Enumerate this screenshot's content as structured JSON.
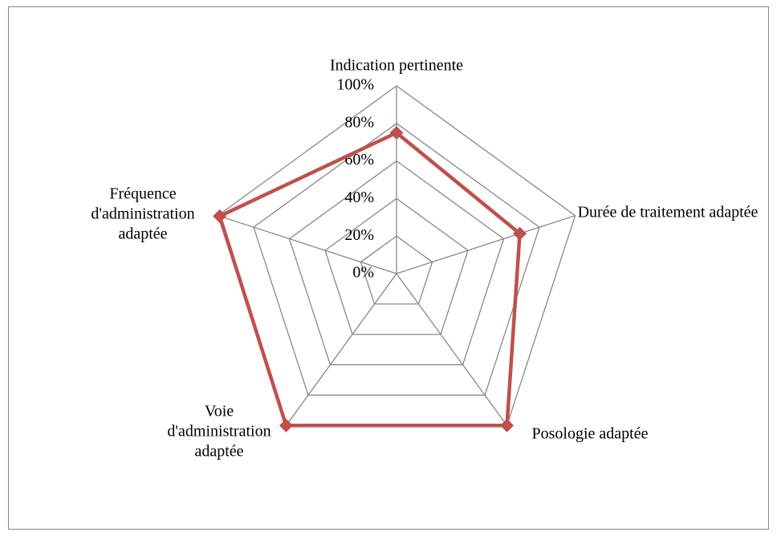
{
  "chart_data": {
    "type": "radar",
    "categories": [
      "Indication pertinente",
      "Durée de traitement adaptée",
      "Posologie adaptée",
      "Voie d'administration adaptée",
      "Fréquence d'administration adaptée"
    ],
    "series": [
      {
        "color": "#c0504d",
        "values": [
          75,
          69,
          100,
          100,
          99
        ]
      }
    ],
    "ylim": [
      0,
      100
    ],
    "yticks": [
      {
        "value": 0,
        "label": "0%"
      },
      {
        "value": 20,
        "label": "20%"
      },
      {
        "value": 40,
        "label": "40%"
      },
      {
        "value": 60,
        "label": "60%"
      },
      {
        "value": 80,
        "label": "80%"
      },
      {
        "value": 100,
        "label": "100%"
      }
    ],
    "grid": true
  }
}
